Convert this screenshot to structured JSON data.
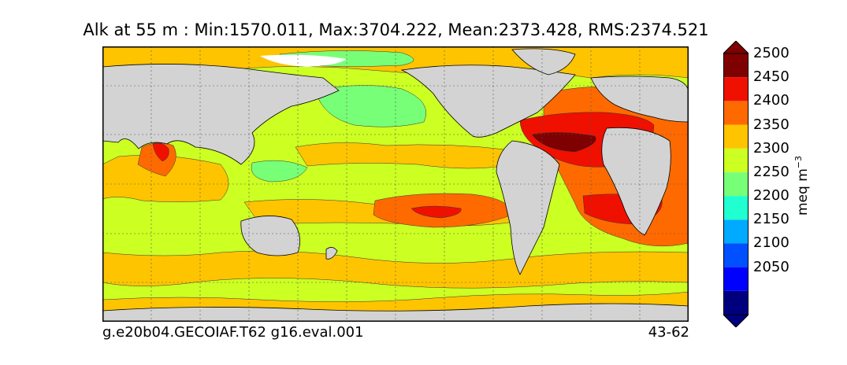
{
  "title": "Alk at 55 m : Min:1570.011, Max:3704.222, Mean:2373.428, RMS:2374.521",
  "footer_left": "g.e20b04.GECOIAF.T62 g16.eval.001",
  "footer_right": "43-62",
  "colorbar": {
    "units_main": "meq m",
    "units_exp": "−3",
    "levels": [
      {
        "label": "",
        "color": "#00007f"
      },
      {
        "label": "2050",
        "color": "#0000ff"
      },
      {
        "label": "2100",
        "color": "#0050ff"
      },
      {
        "label": "2150",
        "color": "#00aaff"
      },
      {
        "label": "2200",
        "color": "#20ffd0"
      },
      {
        "label": "2250",
        "color": "#78ff78"
      },
      {
        "label": "2300",
        "color": "#ccff22"
      },
      {
        "label": "2350",
        "color": "#ffc400"
      },
      {
        "label": "2400",
        "color": "#ff6a00"
      },
      {
        "label": "2450",
        "color": "#f01000"
      },
      {
        "label": "2500",
        "color": "#7f0000"
      }
    ]
  },
  "map_colors": {
    "land": "#d3d3d3",
    "ice": "#ffffff",
    "c2250": "#78ff78",
    "c2300": "#ccff22",
    "c2350": "#ffc400",
    "c2400": "#ff6a00",
    "c2450": "#f01000",
    "c2500": "#7f0000"
  }
}
